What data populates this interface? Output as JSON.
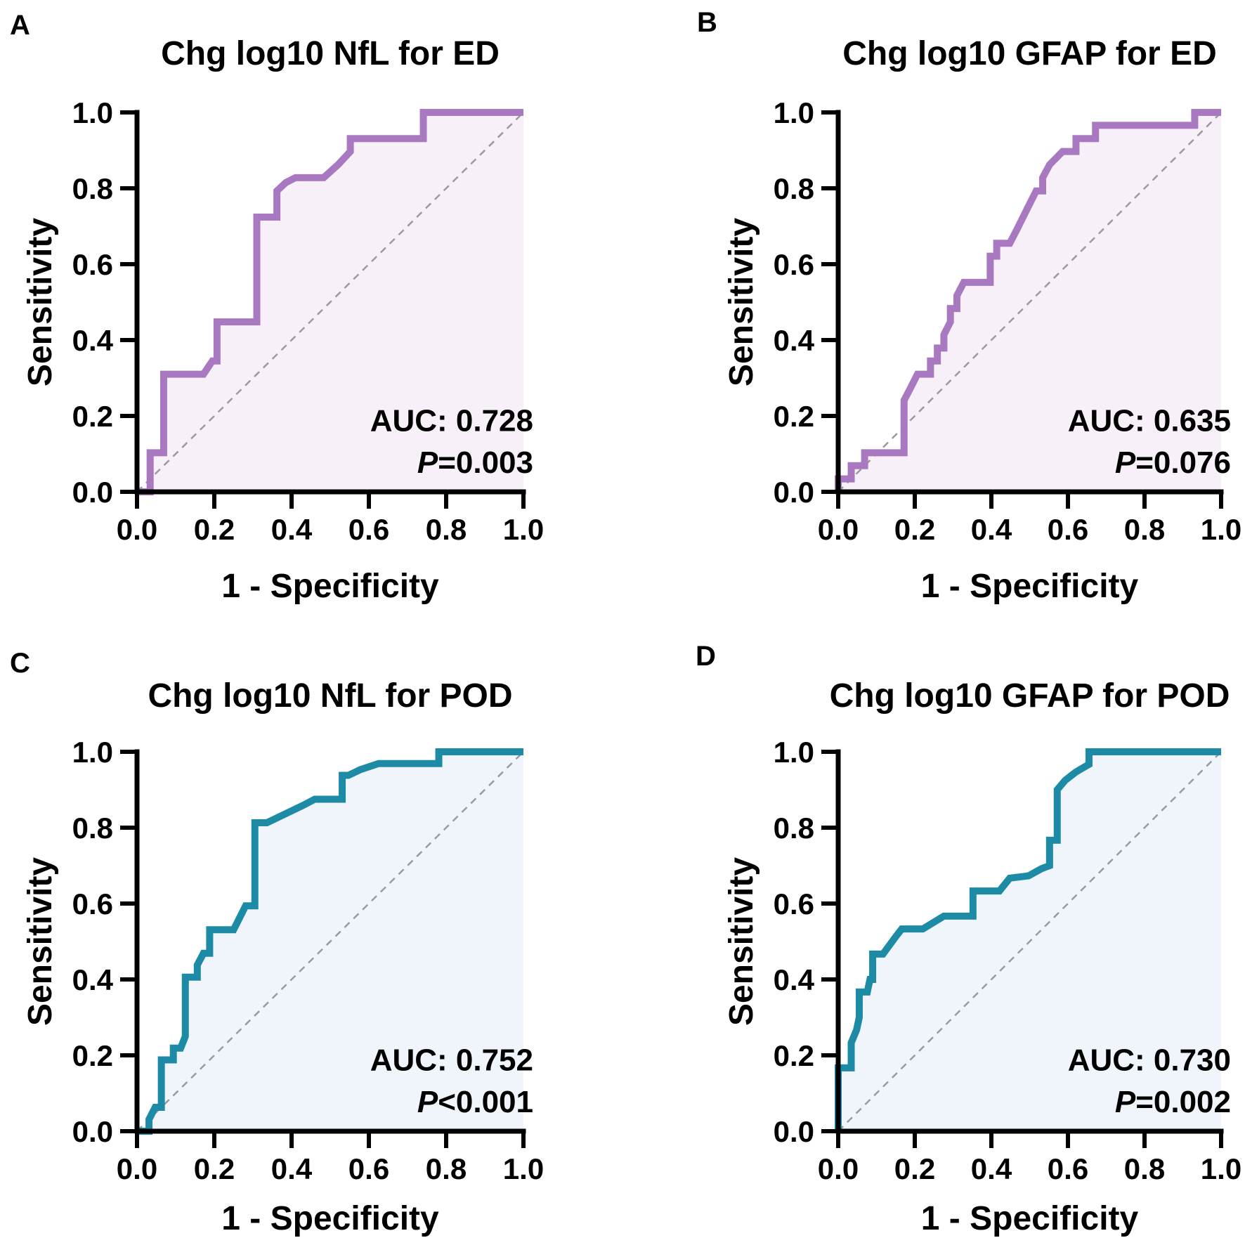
{
  "figure": {
    "panels": [
      {
        "letter": "A"
      },
      {
        "letter": "B"
      },
      {
        "letter": "C"
      },
      {
        "letter": "D"
      }
    ]
  },
  "chart_data": [
    {
      "type": "line",
      "subtype": "roc_curve",
      "panel": "A",
      "title": "Chg log10 NfL for ED",
      "xlabel": "1 - Specificity",
      "ylabel": "Sensitivity",
      "xlim": [
        0,
        1
      ],
      "ylim": [
        0,
        1
      ],
      "xticks": [
        0,
        0.2,
        0.4,
        0.6,
        0.8,
        1.0
      ],
      "yticks": [
        0,
        0.2,
        0.4,
        0.6,
        0.8,
        1.0
      ],
      "grid": false,
      "diagonal_reference_line": true,
      "auc_label": "AUC: 0.728",
      "auc_value": 0.728,
      "p_label_italic": "P",
      "p_label_rest": "=0.003",
      "line_color": "#a879c0",
      "fill_color": "#f8f0f8",
      "diagonal_color": "#9b9b9b",
      "axis_color": "#000000",
      "points": [
        [
          0,
          0
        ],
        [
          0.034,
          0
        ],
        [
          0.034,
          0.103
        ],
        [
          0.069,
          0.103
        ],
        [
          0.069,
          0.31
        ],
        [
          0.172,
          0.31
        ],
        [
          0.195,
          0.345
        ],
        [
          0.207,
          0.345
        ],
        [
          0.207,
          0.448
        ],
        [
          0.31,
          0.448
        ],
        [
          0.31,
          0.724
        ],
        [
          0.362,
          0.724
        ],
        [
          0.362,
          0.793
        ],
        [
          0.385,
          0.815
        ],
        [
          0.41,
          0.828
        ],
        [
          0.483,
          0.828
        ],
        [
          0.52,
          0.862
        ],
        [
          0.552,
          0.897
        ],
        [
          0.552,
          0.931
        ],
        [
          0.741,
          0.931
        ],
        [
          0.741,
          1
        ],
        [
          1,
          1
        ]
      ]
    },
    {
      "type": "line",
      "subtype": "roc_curve",
      "panel": "B",
      "title": "Chg log10 GFAP for ED",
      "xlabel": "1 - Specificity",
      "ylabel": "Sensitivity",
      "xlim": [
        0,
        1
      ],
      "ylim": [
        0,
        1
      ],
      "xticks": [
        0,
        0.2,
        0.4,
        0.6,
        0.8,
        1.0
      ],
      "yticks": [
        0,
        0.2,
        0.4,
        0.6,
        0.8,
        1.0
      ],
      "grid": false,
      "diagonal_reference_line": true,
      "auc_label": "AUC: 0.635",
      "auc_value": 0.635,
      "p_label_italic": "P",
      "p_label_rest": "=0.076",
      "line_color": "#a879c0",
      "fill_color": "#f8f0f8",
      "diagonal_color": "#9b9b9b",
      "axis_color": "#000000",
      "points": [
        [
          0,
          0
        ],
        [
          0,
          0.034
        ],
        [
          0.034,
          0.034
        ],
        [
          0.034,
          0.069
        ],
        [
          0.069,
          0.069
        ],
        [
          0.069,
          0.103
        ],
        [
          0.172,
          0.103
        ],
        [
          0.172,
          0.241
        ],
        [
          0.19,
          0.276
        ],
        [
          0.207,
          0.31
        ],
        [
          0.241,
          0.31
        ],
        [
          0.241,
          0.345
        ],
        [
          0.259,
          0.345
        ],
        [
          0.259,
          0.379
        ],
        [
          0.276,
          0.379
        ],
        [
          0.276,
          0.414
        ],
        [
          0.293,
          0.448
        ],
        [
          0.293,
          0.483
        ],
        [
          0.31,
          0.483
        ],
        [
          0.31,
          0.517
        ],
        [
          0.328,
          0.552
        ],
        [
          0.397,
          0.552
        ],
        [
          0.397,
          0.621
        ],
        [
          0.414,
          0.621
        ],
        [
          0.414,
          0.655
        ],
        [
          0.448,
          0.655
        ],
        [
          0.466,
          0.69
        ],
        [
          0.5,
          0.759
        ],
        [
          0.517,
          0.793
        ],
        [
          0.534,
          0.793
        ],
        [
          0.534,
          0.828
        ],
        [
          0.552,
          0.862
        ],
        [
          0.586,
          0.897
        ],
        [
          0.621,
          0.897
        ],
        [
          0.621,
          0.931
        ],
        [
          0.672,
          0.931
        ],
        [
          0.672,
          0.966
        ],
        [
          0.931,
          0.966
        ],
        [
          0.931,
          1
        ],
        [
          1,
          1
        ]
      ]
    },
    {
      "type": "line",
      "subtype": "roc_curve",
      "panel": "C",
      "title": "Chg log10 NfL for POD",
      "xlabel": "1 - Specificity",
      "ylabel": "Sensitivity",
      "xlim": [
        0,
        1
      ],
      "ylim": [
        0,
        1
      ],
      "xticks": [
        0,
        0.2,
        0.4,
        0.6,
        0.8,
        1.0
      ],
      "yticks": [
        0,
        0.2,
        0.4,
        0.6,
        0.8,
        1.0
      ],
      "grid": false,
      "diagonal_reference_line": true,
      "auc_label": "AUC: 0.752",
      "auc_value": 0.752,
      "p_label_italic": "P",
      "p_label_rest": "<0.001",
      "line_color": "#1d8ba6",
      "fill_color": "#eff5fa",
      "diagonal_color": "#9b9b9b",
      "axis_color": "#000000",
      "points": [
        [
          0,
          0
        ],
        [
          0.031,
          0
        ],
        [
          0.031,
          0.031
        ],
        [
          0.047,
          0.063
        ],
        [
          0.063,
          0.063
        ],
        [
          0.063,
          0.188
        ],
        [
          0.094,
          0.188
        ],
        [
          0.094,
          0.219
        ],
        [
          0.113,
          0.219
        ],
        [
          0.125,
          0.25
        ],
        [
          0.125,
          0.406
        ],
        [
          0.156,
          0.406
        ],
        [
          0.156,
          0.438
        ],
        [
          0.172,
          0.469
        ],
        [
          0.188,
          0.469
        ],
        [
          0.188,
          0.531
        ],
        [
          0.25,
          0.531
        ],
        [
          0.281,
          0.594
        ],
        [
          0.305,
          0.594
        ],
        [
          0.305,
          0.813
        ],
        [
          0.336,
          0.813
        ],
        [
          0.43,
          0.859
        ],
        [
          0.46,
          0.875
        ],
        [
          0.531,
          0.875
        ],
        [
          0.531,
          0.938
        ],
        [
          0.547,
          0.938
        ],
        [
          0.578,
          0.953
        ],
        [
          0.625,
          0.969
        ],
        [
          0.781,
          0.969
        ],
        [
          0.781,
          1
        ],
        [
          1,
          1
        ]
      ]
    },
    {
      "type": "line",
      "subtype": "roc_curve",
      "panel": "D",
      "title": "Chg log10 GFAP for POD",
      "xlabel": "1 - Specificity",
      "ylabel": "Sensitivity",
      "xlim": [
        0,
        1
      ],
      "ylim": [
        0,
        1
      ],
      "xticks": [
        0,
        0.2,
        0.4,
        0.6,
        0.8,
        1.0
      ],
      "yticks": [
        0,
        0.2,
        0.4,
        0.6,
        0.8,
        1.0
      ],
      "grid": false,
      "diagonal_reference_line": true,
      "auc_label": "AUC: 0.730",
      "auc_value": 0.73,
      "p_label_italic": "P",
      "p_label_rest": "=0.002",
      "line_color": "#1d8ba6",
      "fill_color": "#eff5fa",
      "diagonal_color": "#9b9b9b",
      "axis_color": "#000000",
      "points": [
        [
          0,
          0
        ],
        [
          0,
          0.167
        ],
        [
          0.034,
          0.167
        ],
        [
          0.034,
          0.233
        ],
        [
          0.048,
          0.267
        ],
        [
          0.055,
          0.3
        ],
        [
          0.055,
          0.367
        ],
        [
          0.076,
          0.367
        ],
        [
          0.083,
          0.4
        ],
        [
          0.09,
          0.4
        ],
        [
          0.09,
          0.467
        ],
        [
          0.117,
          0.467
        ],
        [
          0.152,
          0.515
        ],
        [
          0.166,
          0.533
        ],
        [
          0.221,
          0.533
        ],
        [
          0.276,
          0.567
        ],
        [
          0.352,
          0.567
        ],
        [
          0.352,
          0.633
        ],
        [
          0.421,
          0.633
        ],
        [
          0.448,
          0.667
        ],
        [
          0.497,
          0.673
        ],
        [
          0.531,
          0.692
        ],
        [
          0.552,
          0.7
        ],
        [
          0.552,
          0.767
        ],
        [
          0.572,
          0.767
        ],
        [
          0.572,
          0.9
        ],
        [
          0.593,
          0.925
        ],
        [
          0.621,
          0.947
        ],
        [
          0.655,
          0.967
        ],
        [
          0.655,
          1
        ],
        [
          1,
          1
        ]
      ]
    }
  ]
}
